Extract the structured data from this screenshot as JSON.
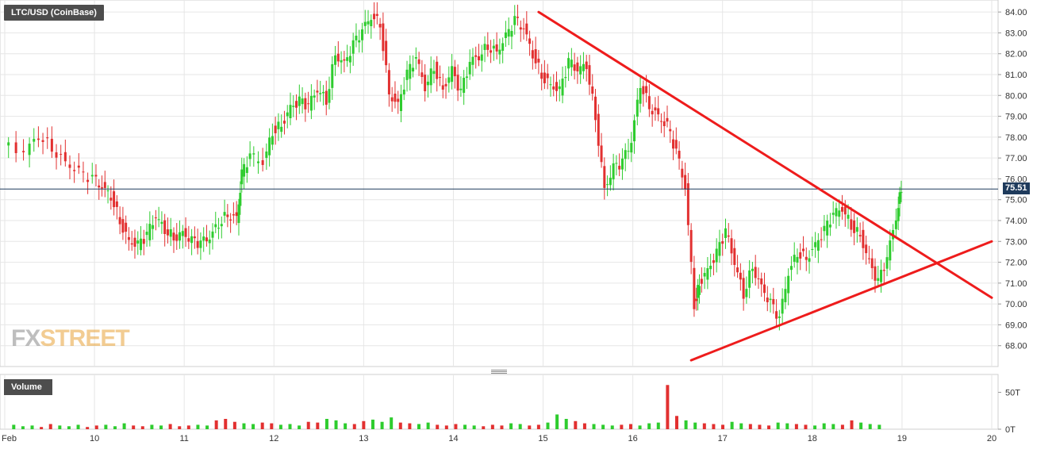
{
  "chart_data": {
    "type": "candlestick",
    "title": "LTC/USD (CoinBase)",
    "current_price_label": "75.51",
    "volume_label": "Volume",
    "watermark": {
      "brand_left": "FX",
      "brand_right": "STREET"
    },
    "x_tick_labels": [
      "Feb",
      "10",
      "11",
      "12",
      "13",
      "14",
      "15",
      "16",
      "17",
      "18",
      "19",
      "20"
    ],
    "y_ticks": [
      "84.00",
      "83.00",
      "82.00",
      "81.00",
      "80.00",
      "79.00",
      "78.00",
      "77.00",
      "76.00",
      "75.00",
      "74.00",
      "73.00",
      "72.00",
      "71.00",
      "70.00",
      "69.00",
      "68.00"
    ],
    "y_range": [
      67.0,
      84.5
    ],
    "volume_ticks": [
      "50T",
      "0T"
    ],
    "volume_range": [
      0,
      70
    ],
    "x_range_days": [
      9.0,
      20.0
    ],
    "colors": {
      "up": "#2ecc2e",
      "down": "#e23030",
      "trendline": "#ee1c1c",
      "price_line": "#1f3b5c",
      "grid": "#e6e6e6"
    },
    "series": [
      {
        "name": "price",
        "points": [
          [
            9.0,
            77.6
          ],
          [
            9.25,
            77.3
          ],
          [
            9.4,
            78.1
          ],
          [
            9.55,
            77.5
          ],
          [
            9.7,
            76.8
          ],
          [
            9.85,
            76.3
          ],
          [
            10.0,
            76.0
          ],
          [
            10.1,
            75.6
          ],
          [
            10.2,
            75.2
          ],
          [
            10.3,
            74.0
          ],
          [
            10.4,
            73.0
          ],
          [
            10.5,
            72.8
          ],
          [
            10.6,
            73.3
          ],
          [
            10.7,
            74.2
          ],
          [
            10.8,
            73.6
          ],
          [
            10.9,
            73.2
          ],
          [
            11.0,
            73.4
          ],
          [
            11.1,
            73.0
          ],
          [
            11.2,
            72.9
          ],
          [
            11.3,
            73.2
          ],
          [
            11.4,
            73.9
          ],
          [
            11.5,
            74.3
          ],
          [
            11.6,
            74.1
          ],
          [
            11.65,
            76.2
          ],
          [
            11.75,
            77.1
          ],
          [
            11.9,
            76.8
          ],
          [
            12.0,
            78.3
          ],
          [
            12.1,
            78.6
          ],
          [
            12.2,
            79.4
          ],
          [
            12.3,
            79.7
          ],
          [
            12.4,
            79.5
          ],
          [
            12.5,
            80.3
          ],
          [
            12.6,
            79.8
          ],
          [
            12.7,
            82.0
          ],
          [
            12.8,
            81.5
          ],
          [
            12.9,
            82.4
          ],
          [
            13.0,
            83.1
          ],
          [
            13.1,
            83.8
          ],
          [
            13.2,
            83.5
          ],
          [
            13.3,
            80.1
          ],
          [
            13.4,
            79.5
          ],
          [
            13.5,
            81.0
          ],
          [
            13.6,
            81.8
          ],
          [
            13.7,
            80.4
          ],
          [
            13.8,
            81.4
          ],
          [
            13.9,
            80.3
          ],
          [
            14.0,
            81.2
          ],
          [
            14.1,
            80.1
          ],
          [
            14.2,
            81.6
          ],
          [
            14.3,
            81.9
          ],
          [
            14.4,
            82.4
          ],
          [
            14.5,
            82.1
          ],
          [
            14.6,
            82.8
          ],
          [
            14.7,
            83.6
          ],
          [
            14.8,
            83.2
          ],
          [
            14.9,
            82.0
          ],
          [
            15.0,
            81.0
          ],
          [
            15.1,
            80.5
          ],
          [
            15.2,
            80.2
          ],
          [
            15.3,
            81.6
          ],
          [
            15.4,
            81.2
          ],
          [
            15.5,
            81.5
          ],
          [
            15.6,
            79.0
          ],
          [
            15.7,
            75.5
          ],
          [
            15.8,
            76.5
          ],
          [
            15.9,
            76.8
          ],
          [
            16.0,
            77.8
          ],
          [
            16.1,
            80.6
          ],
          [
            16.2,
            79.5
          ],
          [
            16.3,
            79.0
          ],
          [
            16.4,
            78.5
          ],
          [
            16.5,
            77.3
          ],
          [
            16.6,
            75.6
          ],
          [
            16.7,
            70.0
          ],
          [
            16.75,
            71.0
          ],
          [
            16.85,
            71.6
          ],
          [
            16.95,
            72.4
          ],
          [
            17.05,
            73.5
          ],
          [
            17.15,
            72.0
          ],
          [
            17.25,
            70.5
          ],
          [
            17.35,
            71.8
          ],
          [
            17.45,
            70.8
          ],
          [
            17.55,
            70.0
          ],
          [
            17.65,
            69.3
          ],
          [
            17.75,
            71.5
          ],
          [
            17.85,
            72.5
          ],
          [
            17.95,
            72.2
          ],
          [
            18.05,
            72.8
          ],
          [
            18.15,
            73.5
          ],
          [
            18.25,
            74.3
          ],
          [
            18.35,
            74.6
          ],
          [
            18.45,
            73.8
          ],
          [
            18.55,
            73.3
          ],
          [
            18.65,
            72.0
          ],
          [
            18.75,
            71.0
          ],
          [
            18.85,
            72.2
          ],
          [
            18.95,
            74.2
          ],
          [
            19.0,
            75.6
          ]
        ]
      },
      {
        "name": "volume",
        "values": [
          6,
          4,
          5,
          3,
          7,
          5,
          4,
          6,
          3,
          5,
          6,
          4,
          8,
          5,
          4,
          6,
          5,
          7,
          4,
          5,
          6,
          5,
          12,
          14,
          10,
          8,
          7,
          9,
          8,
          6,
          7,
          5,
          10,
          9,
          14,
          12,
          8,
          7,
          11,
          13,
          10,
          16,
          9,
          8,
          7,
          9,
          6,
          5,
          7,
          6,
          5,
          4,
          6,
          5,
          8,
          7,
          5,
          6,
          9,
          20,
          14,
          11,
          8,
          7,
          6,
          5,
          6,
          7,
          5,
          8,
          9,
          60,
          18,
          12,
          9,
          8,
          7,
          6,
          10,
          8,
          7,
          6,
          5,
          9,
          8,
          7,
          6,
          5,
          8,
          7,
          6,
          12,
          9,
          7,
          6
        ]
      }
    ],
    "trendlines": [
      {
        "name": "descending resistance",
        "x": [
          14.95,
          20.0
        ],
        "y": [
          84.0,
          70.3
        ]
      },
      {
        "name": "ascending support",
        "x": [
          16.65,
          20.0
        ],
        "y": [
          67.3,
          73.0
        ]
      }
    ],
    "grid": true
  }
}
